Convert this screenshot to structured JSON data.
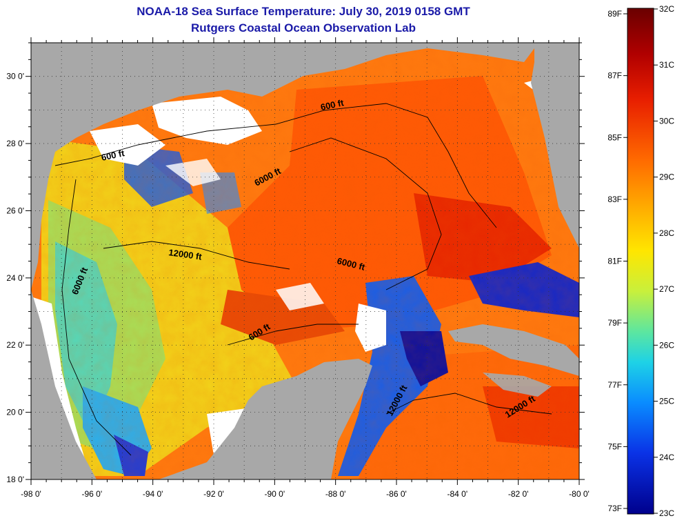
{
  "header": {
    "title": "NOAA-18 Sea Surface Temperature:  July 30, 2019 0158 GMT",
    "subtitle": "Rutgers Coastal Ocean Observation Lab"
  },
  "axes": {
    "lon_labels": [
      "-98 0'",
      "-96 0'",
      "-94 0'",
      "-92 0'",
      "-90 0'",
      "-88 0'",
      "-86 0'",
      "-84 0'",
      "-82 0'",
      "-80 0'"
    ],
    "lat_labels": [
      "30 0'",
      "28 0'",
      "26 0'",
      "24 0'",
      "22 0'",
      "20 0'",
      "18 0'"
    ],
    "lon_range": [
      -98,
      -80
    ],
    "lat_range": [
      18,
      31
    ]
  },
  "contours": [
    {
      "label": "600 ft"
    },
    {
      "label": "600 ft"
    },
    {
      "label": "6000 ft"
    },
    {
      "label": "12000 ft"
    },
    {
      "label": "6000 ft"
    },
    {
      "label": "6000 ft"
    },
    {
      "label": "600 ft"
    },
    {
      "label": "12000 ft"
    },
    {
      "label": "12000 ft"
    }
  ],
  "colorbar": {
    "fahrenheit": [
      "89F",
      "87F",
      "85F",
      "83F",
      "81F",
      "79F",
      "77F",
      "75F",
      "73F"
    ],
    "celsius": [
      "32C",
      "31C",
      "30C",
      "29C",
      "28C",
      "27C",
      "26C",
      "25C",
      "24C",
      "23C"
    ],
    "colors": [
      "#6a0000",
      "#b00000",
      "#e81e00",
      "#ff6a00",
      "#ffb000",
      "#ffe600",
      "#c8f03c",
      "#5ce6a0",
      "#1ed2e6",
      "#0a8cff",
      "#0a32e6",
      "#00008c"
    ]
  },
  "colors": {
    "land": "#a8a8a8",
    "cloud": "#ffffff",
    "title": "#1a1aa8"
  }
}
